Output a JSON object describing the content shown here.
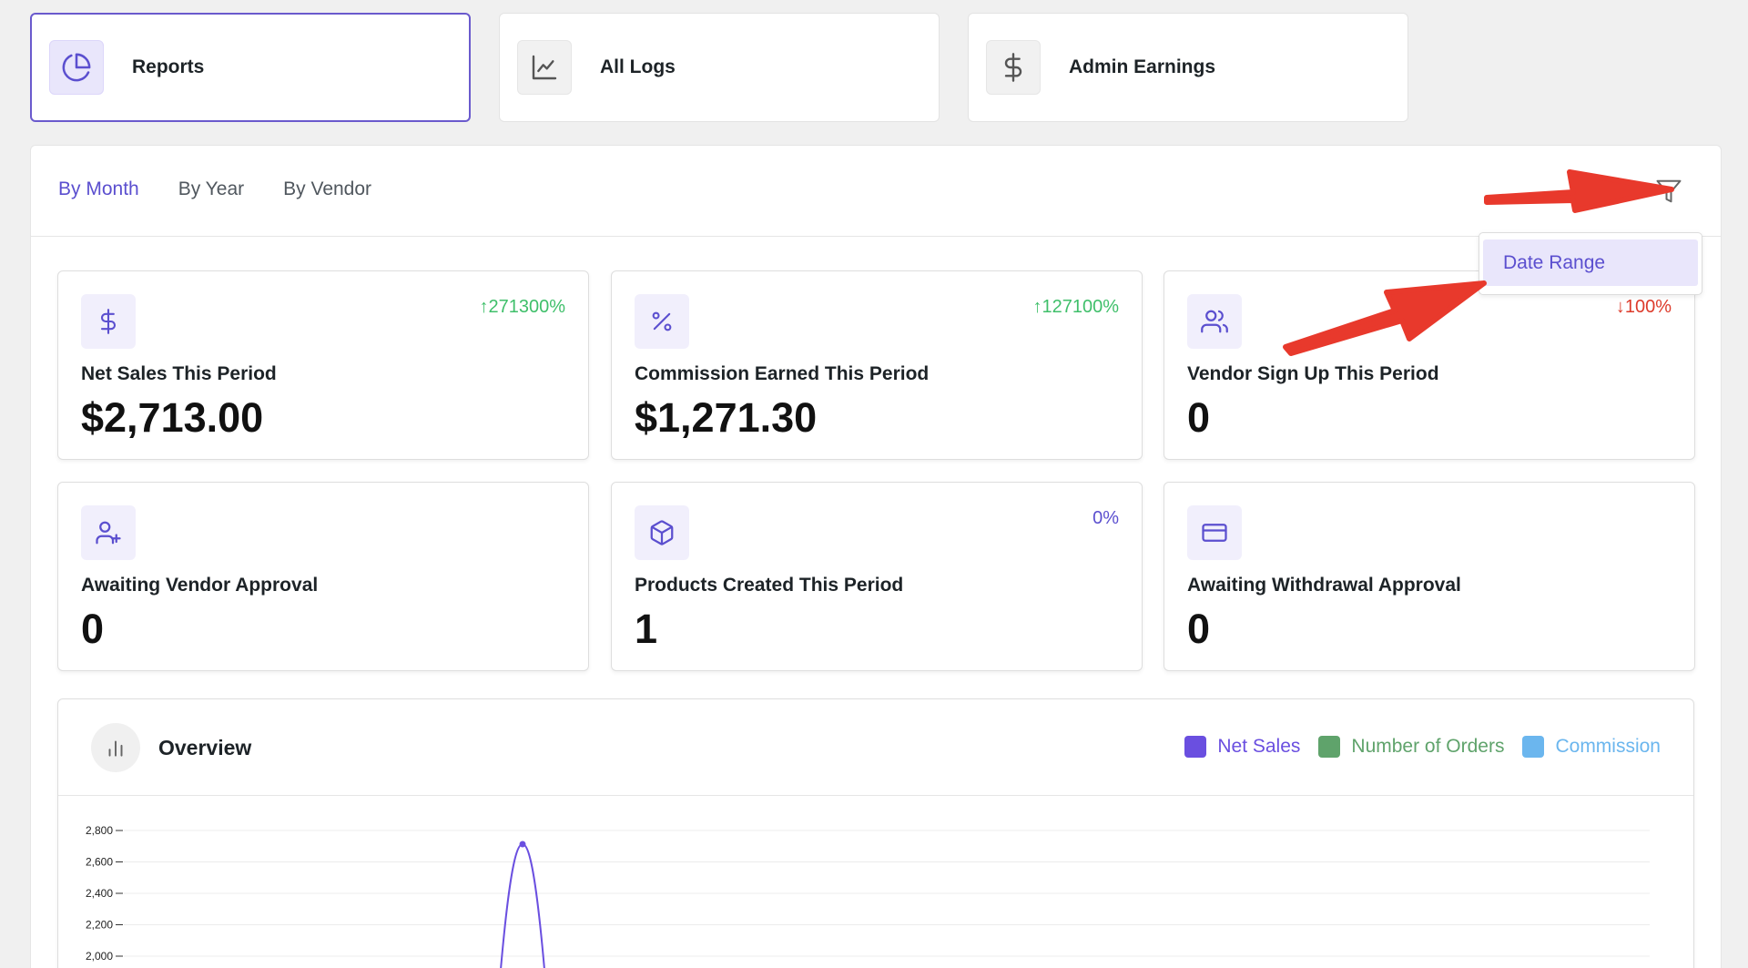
{
  "top_tabs": [
    {
      "label": "Reports",
      "icon": "pie-chart-icon",
      "active": true
    },
    {
      "label": "All Logs",
      "icon": "line-chart-icon",
      "active": false
    },
    {
      "label": "Admin Earnings",
      "icon": "dollar-icon",
      "active": false
    }
  ],
  "subtabs": [
    {
      "label": "By Month",
      "active": true
    },
    {
      "label": "By Year",
      "active": false
    },
    {
      "label": "By Vendor",
      "active": false
    }
  ],
  "filter": {
    "icon": "filter-icon",
    "dropdown_item": "Date Range"
  },
  "cards": [
    {
      "title": "Net Sales This Period",
      "value": "$2,713.00",
      "change": "271300%",
      "direction": "up",
      "icon": "dollar-icon"
    },
    {
      "title": "Commission Earned This Period",
      "value": "$1,271.30",
      "change": "127100%",
      "direction": "up",
      "icon": "percent-icon"
    },
    {
      "title": "Vendor Sign Up This Period",
      "value": "0",
      "change": "100%",
      "direction": "down",
      "icon": "users-icon"
    },
    {
      "title": "Awaiting Vendor Approval",
      "value": "0",
      "change": "",
      "direction": "none",
      "icon": "user-plus-icon"
    },
    {
      "title": "Products Created This Period",
      "value": "1",
      "change": "0%",
      "direction": "flat",
      "icon": "box-icon"
    },
    {
      "title": "Awaiting Withdrawal Approval",
      "value": "0",
      "change": "",
      "direction": "none",
      "icon": "credit-card-icon"
    }
  ],
  "overview": {
    "title": "Overview",
    "icon": "bar-chart-icon",
    "legend": [
      {
        "label": "Net Sales",
        "color": "#6a4fe0"
      },
      {
        "label": "Number of Orders",
        "color": "#5fa36b"
      },
      {
        "label": "Commission",
        "color": "#6bb6ee"
      }
    ]
  },
  "colors": {
    "accent": "#5b4fcf",
    "up": "#3fbf6a",
    "down": "#dd3b2b",
    "annotation_arrow": "#e8392c"
  },
  "chart_data": {
    "type": "line",
    "series": [
      {
        "name": "Net Sales",
        "peak_value": 2713
      }
    ],
    "y_ticks": [
      "2,800",
      "2,600",
      "2,400",
      "2,200",
      "2,000"
    ],
    "y_values": [
      2800,
      2600,
      2400,
      2200,
      2000
    ]
  }
}
